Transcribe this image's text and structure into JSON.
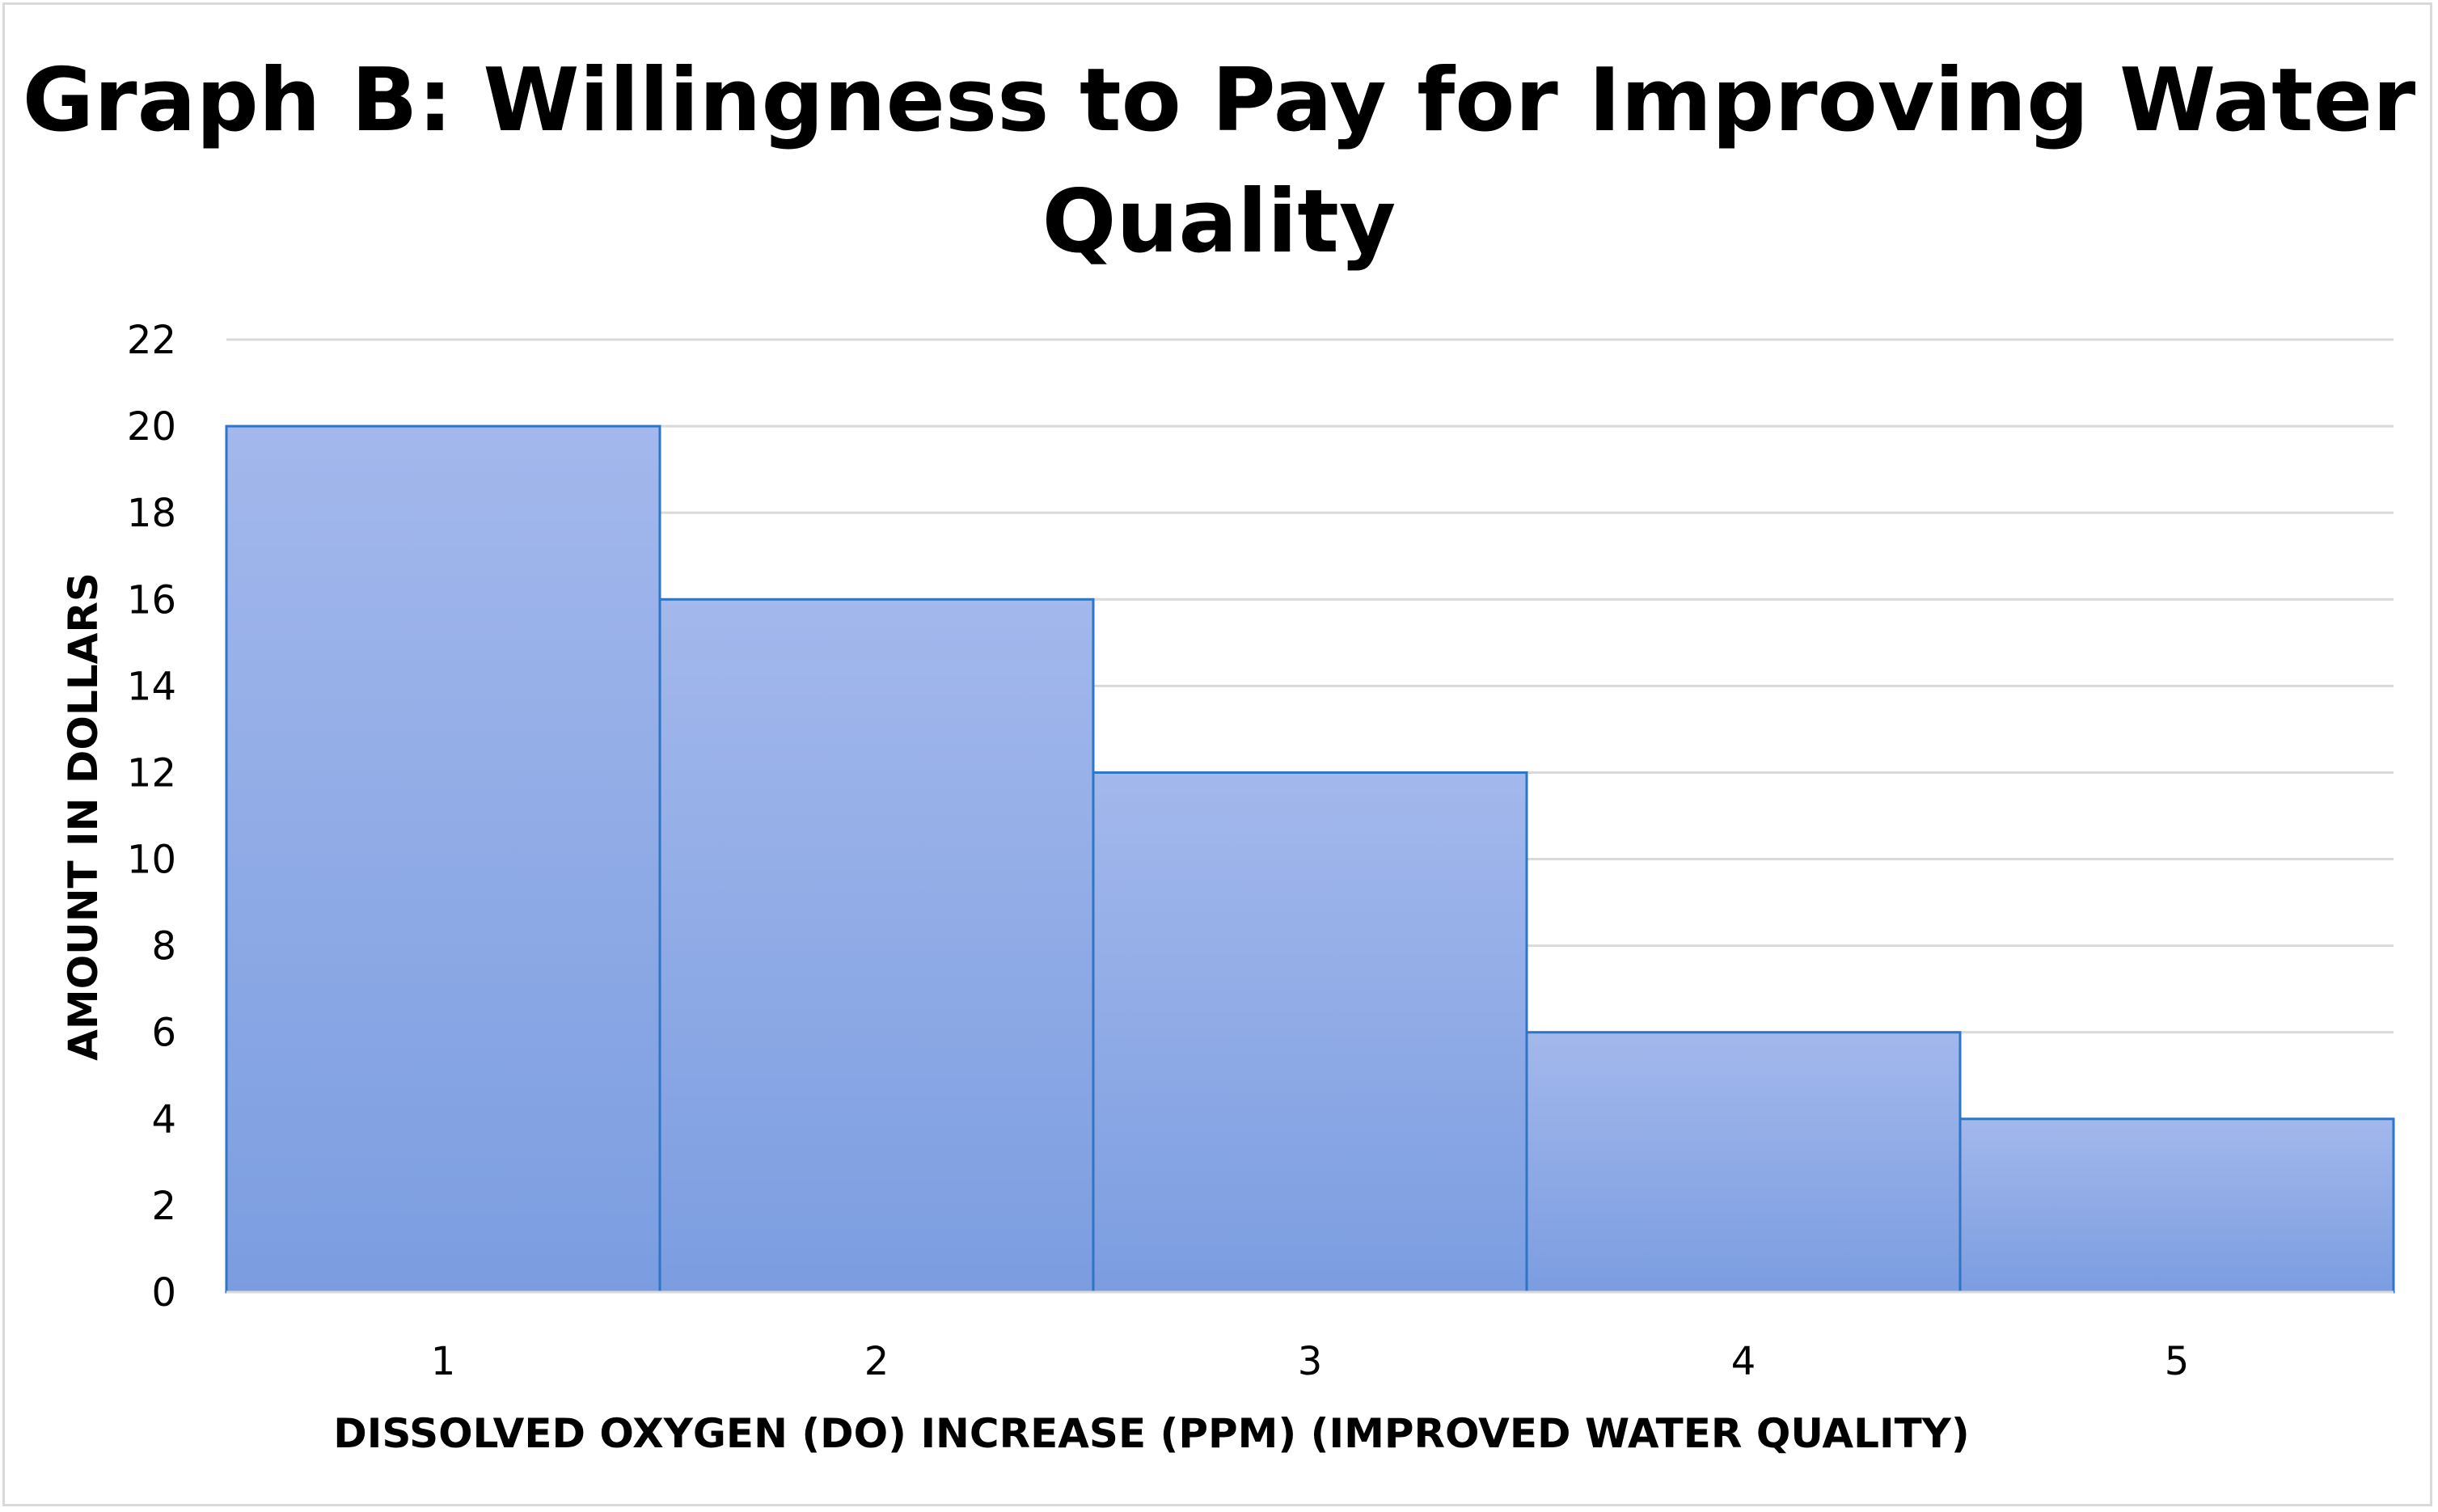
{
  "chart_data": {
    "type": "bar",
    "title": "Graph B: Willingness to Pay for Improving Water Quality",
    "xlabel": "DISSOLVED OXYGEN (DO) INCREASE (PPM) (IMPROVED WATER QUALITY)",
    "ylabel": "AMOUNT IN DOLLARS",
    "categories": [
      "1",
      "2",
      "3",
      "4",
      "5"
    ],
    "values": [
      20,
      16,
      12,
      6,
      4
    ],
    "ylim": [
      0,
      22
    ],
    "ytick_step": 2,
    "grid": true,
    "legend": "none",
    "bar_gap": "none",
    "colors": {
      "bar_top": "#a3b8ec",
      "bar_bottom": "#7b9de0",
      "bar_border": "#2e75c6",
      "grid": "#d9d9d9"
    }
  }
}
